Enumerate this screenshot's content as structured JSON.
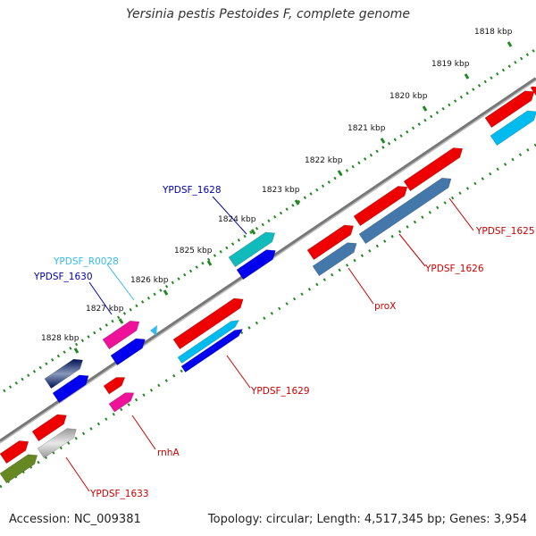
{
  "title": "Yersinia pestis Pestoides F, complete genome",
  "accession": "Accession: NC_009381",
  "topology": "Topology: circular; Length: 4,517,345 bp; Genes: 3,954",
  "scale_labels": [
    "1818 kbp",
    "1819 kbp",
    "1820 kbp",
    "1821 kbp",
    "1822 kbp",
    "1823 kbp",
    "1824 kbp",
    "1825 kbp",
    "1826 kbp",
    "1827 kbp",
    "1828 kbp"
  ],
  "gene_labels": {
    "ypdsf_1625": "YPDSF_1625",
    "ypdsf_1626": "YPDSF_1626",
    "prox": "proX",
    "ypdsf_1628": "YPDSF_1628",
    "ypdsf_r0028": "YPDSF_R0028",
    "ypdsf_1630": "YPDSF_1630",
    "ypdsf_1629": "YPDSF_1629",
    "rnha": "rnhA",
    "ypdsf_1633": "YPDSF_1633"
  },
  "colors": {
    "red": "#ee0000",
    "dark_red_label": "#cc0000",
    "blue": "#0000ee",
    "dark_blue_label": "#0000aa",
    "cyan": "#00bbee",
    "steel_blue": "#4477aa",
    "teal": "#11bbbb",
    "magenta": "#ee1199",
    "navy": "#001166",
    "gray": "#aaaaaa",
    "olive": "#668822",
    "scale_green": "#228822"
  }
}
